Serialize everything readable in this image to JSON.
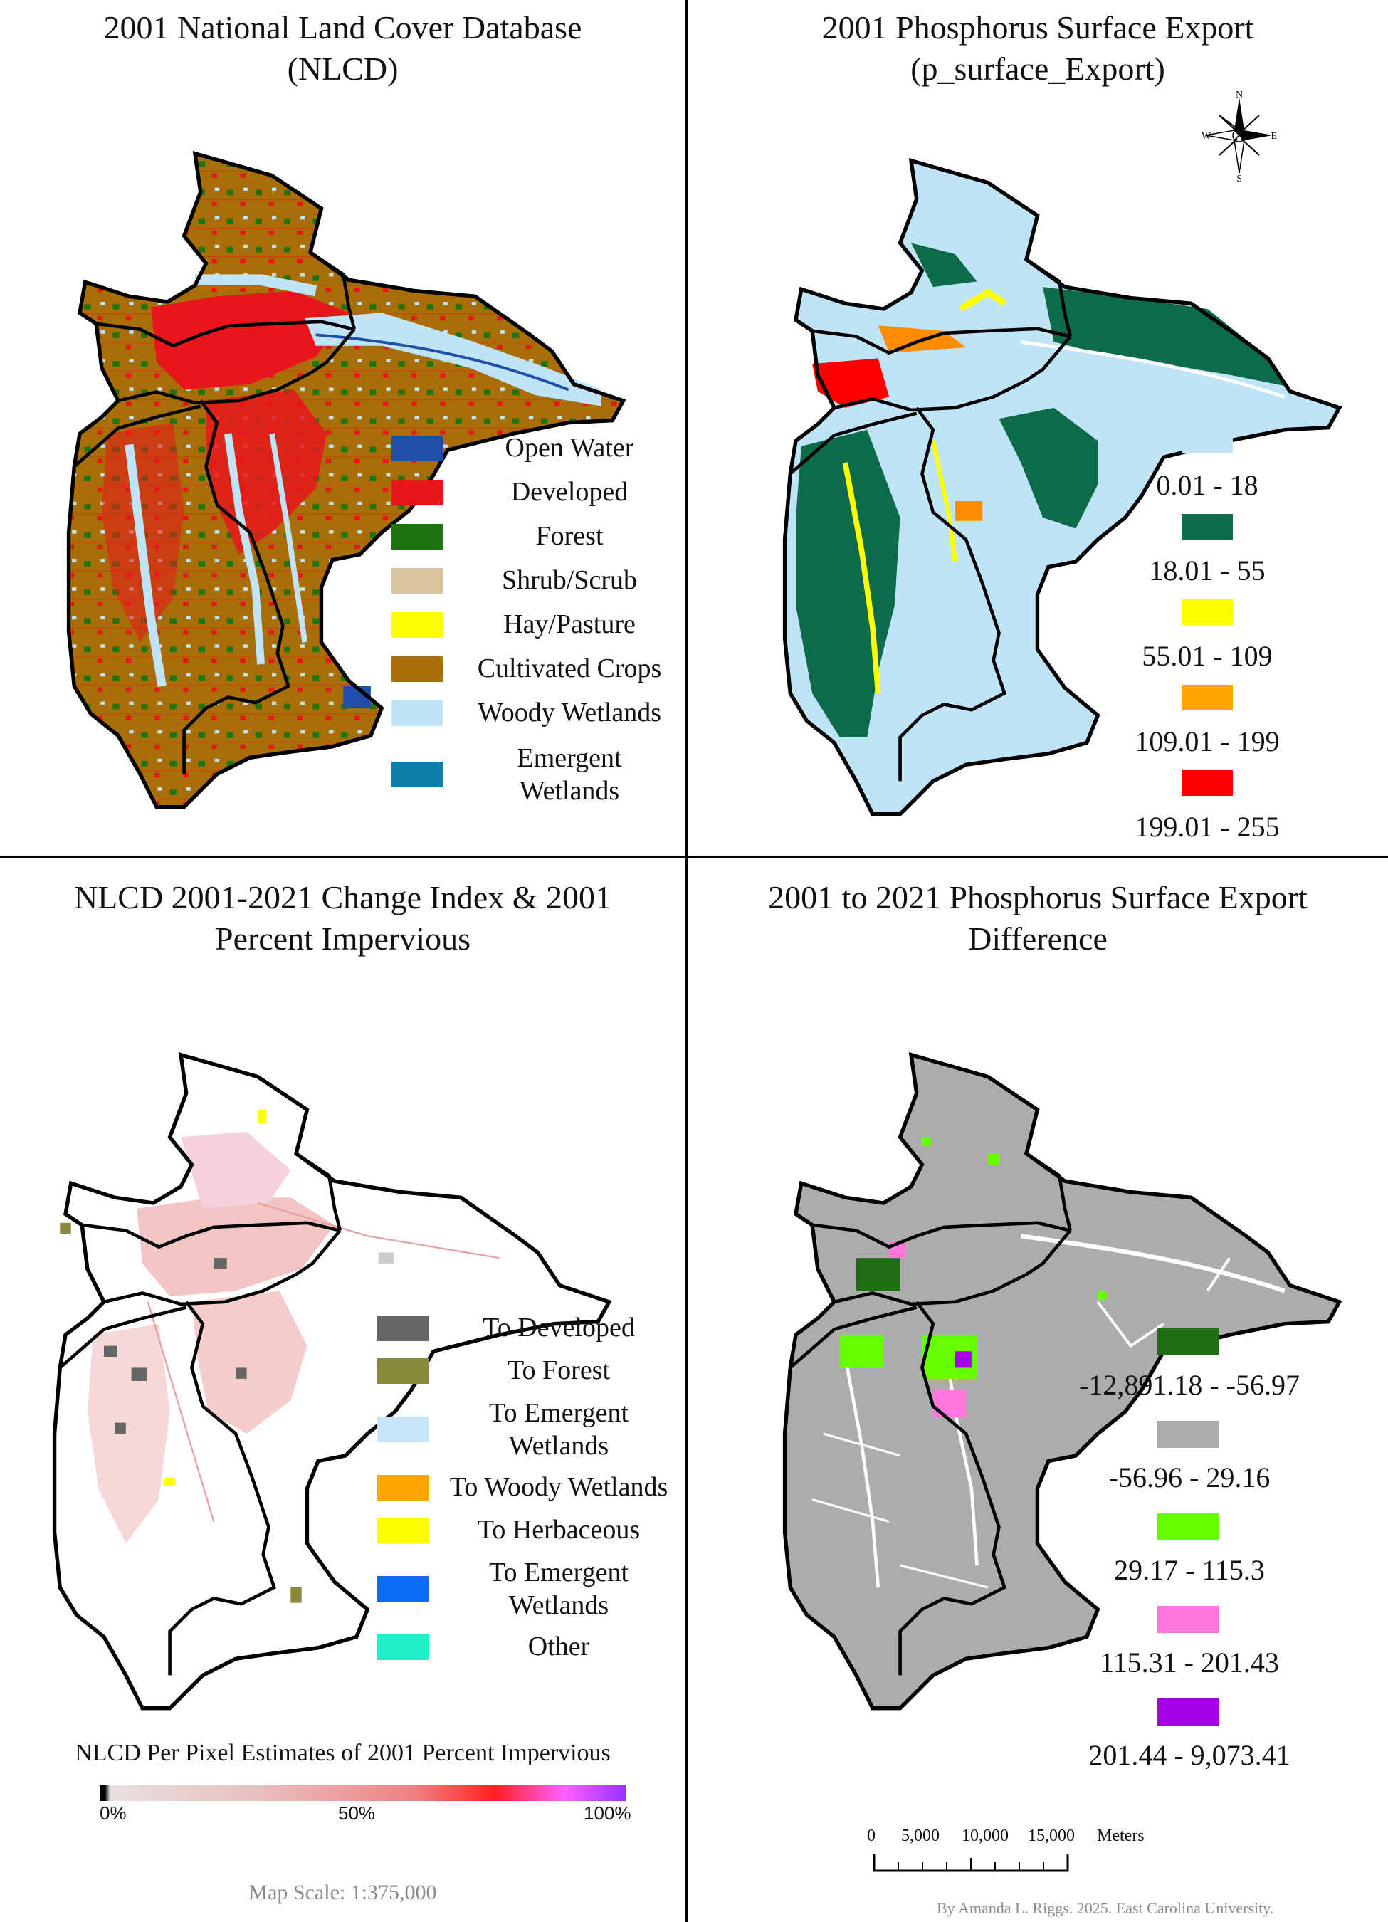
{
  "panels": {
    "nlcd": {
      "title_line1": "2001 National Land Cover Database",
      "title_line2": "(NLCD)",
      "legend": [
        {
          "label": "Open Water",
          "color": "#1f4fa8"
        },
        {
          "label": "Developed",
          "color": "#e8161b"
        },
        {
          "label": "Forest",
          "color": "#1f7411"
        },
        {
          "label": "Shrub/Scrub",
          "color": "#d9c4a0"
        },
        {
          "label": "Hay/Pasture",
          "color": "#ffff00"
        },
        {
          "label": "Cultivated Crops",
          "color": "#a86f08"
        },
        {
          "label": "Woody Wetlands",
          "color": "#bfe4f8"
        },
        {
          "label": "Emergent Wetlands",
          "color": "#0d7fa8"
        }
      ]
    },
    "phosphorus": {
      "title_line1": "2001 Phosphorus Surface Export",
      "title_line2": "(p_surface_Export)",
      "compass": {
        "n": "N",
        "s": "S",
        "e": "E",
        "w": "W"
      },
      "legend": [
        {
          "label": "0.01 - 18",
          "color": "#bfe4f8"
        },
        {
          "label": "18.01 - 55",
          "color": "#0e6b4a"
        },
        {
          "label": "55.01 - 109",
          "color": "#ffff00"
        },
        {
          "label": "109.01 - 199",
          "color": "#ffa500"
        },
        {
          "label": "199.01 - 255",
          "color": "#ff0000"
        }
      ]
    },
    "change": {
      "title_line1": "NLCD 2001-2021 Change Index & 2001",
      "title_line2": "Percent Impervious",
      "legend": [
        {
          "label": "To Developed",
          "color": "#666666"
        },
        {
          "label": "To Forest",
          "color": "#8a8a3c"
        },
        {
          "label": "To Emergent Wetlands",
          "color": "#c6e5f8"
        },
        {
          "label": "To Woody Wetlands",
          "color": "#ffa500"
        },
        {
          "label": "To Herbaceous",
          "color": "#ffff00"
        },
        {
          "label": "To Emergent Wetlands",
          "color": "#0a6cf5"
        },
        {
          "label": "Other",
          "color": "#22f0c8"
        }
      ],
      "impervious_title": "NLCD Per Pixel Estimates of 2001 Percent Impervious",
      "impervious_ticks": [
        "0%",
        "50%",
        "100%"
      ],
      "scale_text": "Map Scale: 1:375,000"
    },
    "difference": {
      "title_line1": "2001 to 2021 Phosphorus Surface Export",
      "title_line2": "Difference",
      "legend": [
        {
          "label": "-12,891.18 - -56.97",
          "color": "#1f6e12"
        },
        {
          "label": "-56.96 - 29.16",
          "color": "#acacac"
        },
        {
          "label": "29.17 - 115.3",
          "color": "#66ff00"
        },
        {
          "label": "115.31 - 201.43",
          "color": "#ff77dd"
        },
        {
          "label": "201.44 - 9,073.41",
          "color": "#a200e6"
        }
      ],
      "scalebar": {
        "ticks": [
          "0",
          "5,000",
          "10,000",
          "15,000"
        ],
        "unit": "Meters"
      },
      "credit": "By Amanda L. Riggs. 2025. East Carolina University."
    }
  }
}
